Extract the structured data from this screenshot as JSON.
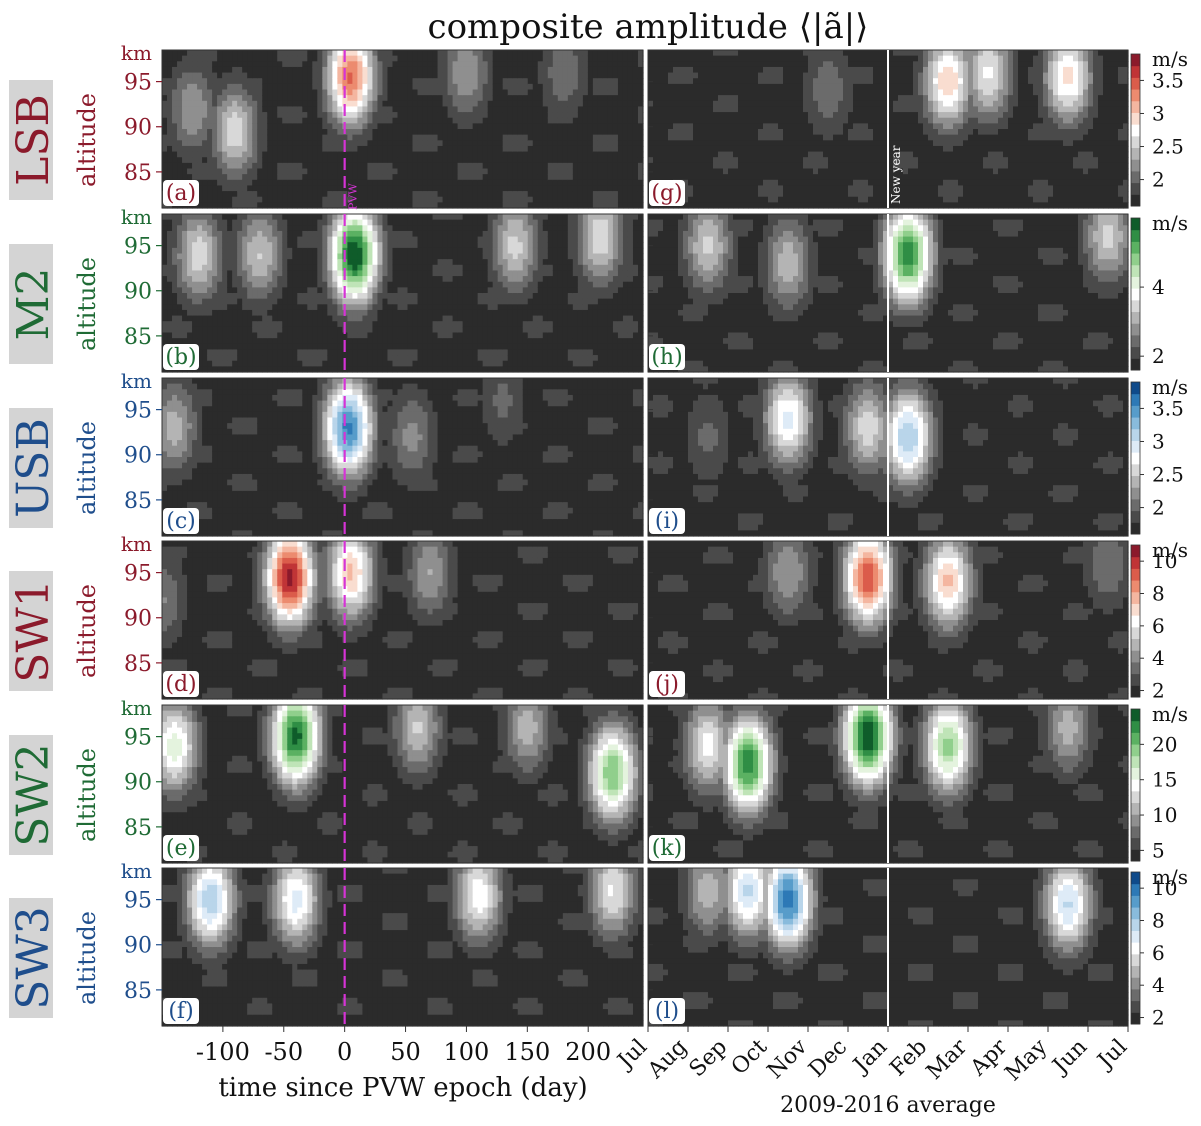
{
  "title": "composite amplitude ⟨|ã|⟩",
  "left_xlabel": "time since PVW epoch (day)",
  "right_xlabel": "2009-2016 average",
  "left_xticks": [
    -100,
    -50,
    0,
    50,
    100,
    150,
    200
  ],
  "left_xlim": [
    -150,
    245
  ],
  "right_xticks": [
    "Jul",
    "Aug",
    "Sep",
    "Oct",
    "Nov",
    "Dec",
    "Jan",
    "Feb",
    "Mar",
    "Apr",
    "May",
    "Jun",
    "Jul"
  ],
  "yticks": [
    85,
    90,
    95
  ],
  "ylim": [
    81,
    98.5
  ],
  "ylabel": "altitude",
  "yunit": "km",
  "cbar_unit": "m/s",
  "pvw_label": "PVW",
  "newyear_label": "New year",
  "colors": {
    "red": "#8b1a2b",
    "green": "#1f6b35",
    "blue": "#1f4e8c",
    "magenta": "#d633d6",
    "dark_grey": "#2b2b2b",
    "label_bg": "#d4d4d4"
  },
  "chart_data": [
    {
      "component": "LSB",
      "type": "heatmap",
      "palette": "red",
      "cbar_ticks": [
        2,
        2.5,
        3,
        3.5
      ],
      "cbar_range": [
        1.6,
        3.9
      ],
      "left_panel": "(a)",
      "right_panel": "(g)",
      "left_peaks": [
        {
          "time_day": 5,
          "alt_km": 95.5,
          "amp": 3.4
        },
        {
          "time_day": -90,
          "alt_km": 89.5,
          "amp": 2.6
        },
        {
          "time_day": -125,
          "alt_km": 92,
          "amp": 2.3
        },
        {
          "time_day": 100,
          "alt_km": 96,
          "amp": 2.3
        },
        {
          "time_day": 180,
          "alt_km": 96,
          "amp": 2.1
        }
      ],
      "right_peaks": [
        {
          "month": "Feb",
          "alt_km": 95,
          "amp": 3.0
        },
        {
          "month": "Mar",
          "alt_km": 96,
          "amp": 2.7
        },
        {
          "month": "May",
          "alt_km": 95.5,
          "amp": 2.9
        },
        {
          "month": "Nov",
          "alt_km": 94,
          "amp": 2.1
        }
      ]
    },
    {
      "component": "M2",
      "type": "heatmap",
      "palette": "green",
      "cbar_ticks": [
        2,
        4
      ],
      "cbar_range": [
        1.6,
        6
      ],
      "left_panel": "(b)",
      "right_panel": "(h)",
      "left_peaks": [
        {
          "time_day": 8,
          "alt_km": 94,
          "amp": 6.0
        },
        {
          "time_day": -120,
          "alt_km": 94,
          "amp": 3.5
        },
        {
          "time_day": -70,
          "alt_km": 94,
          "amp": 3.3
        },
        {
          "time_day": 140,
          "alt_km": 95,
          "amp": 3.4
        },
        {
          "time_day": 210,
          "alt_km": 96,
          "amp": 3.6
        }
      ],
      "right_peaks": [
        {
          "month": "Jan",
          "alt_km": 94,
          "amp": 5.6
        },
        {
          "month": "Aug",
          "alt_km": 95,
          "amp": 3.4
        },
        {
          "month": "Oct",
          "alt_km": 93,
          "amp": 3.2
        },
        {
          "month": "Jun",
          "alt_km": 96,
          "amp": 3.4
        }
      ]
    },
    {
      "component": "USB",
      "type": "heatmap",
      "palette": "blue",
      "cbar_ticks": [
        2,
        2.5,
        3,
        3.5
      ],
      "cbar_range": [
        1.6,
        3.9
      ],
      "left_panel": "(c)",
      "right_panel": "(i)",
      "left_peaks": [
        {
          "time_day": 3,
          "alt_km": 93,
          "amp": 3.6
        },
        {
          "time_day": -140,
          "alt_km": 93,
          "amp": 2.4
        },
        {
          "time_day": 55,
          "alt_km": 92,
          "amp": 2.2
        },
        {
          "time_day": 130,
          "alt_km": 96,
          "amp": 2.0
        }
      ],
      "right_peaks": [
        {
          "month": "Jan",
          "alt_km": 92,
          "amp": 3.2
        },
        {
          "month": "Oct",
          "alt_km": 94,
          "amp": 2.9
        },
        {
          "month": "Dec",
          "alt_km": 93,
          "amp": 2.6
        },
        {
          "month": "Aug",
          "alt_km": 92,
          "amp": 2.0
        }
      ]
    },
    {
      "component": "SW1",
      "type": "heatmap",
      "palette": "red",
      "cbar_ticks": [
        2,
        4,
        6,
        8,
        10
      ],
      "cbar_range": [
        1.6,
        11
      ],
      "left_panel": "(d)",
      "right_panel": "(j)",
      "left_peaks": [
        {
          "time_day": -45,
          "alt_km": 94.5,
          "amp": 10.5
        },
        {
          "time_day": 5,
          "alt_km": 95,
          "amp": 7.5
        },
        {
          "time_day": 70,
          "alt_km": 95,
          "amp": 4.5
        },
        {
          "time_day": -150,
          "alt_km": 92,
          "amp": 3.8
        }
      ],
      "right_peaks": [
        {
          "month": "Dec",
          "alt_km": 94.5,
          "amp": 9.5
        },
        {
          "month": "Feb",
          "alt_km": 94,
          "amp": 7.5
        },
        {
          "month": "Oct",
          "alt_km": 95,
          "amp": 4.5
        },
        {
          "month": "Jun",
          "alt_km": 96,
          "amp": 3.8
        }
      ]
    },
    {
      "component": "SW2",
      "type": "heatmap",
      "palette": "green",
      "cbar_ticks": [
        5,
        10,
        15,
        20
      ],
      "cbar_range": [
        3.5,
        25
      ],
      "left_panel": "(e)",
      "right_panel": "(k)",
      "left_peaks": [
        {
          "time_day": -40,
          "alt_km": 95,
          "amp": 24
        },
        {
          "time_day": -140,
          "alt_km": 94,
          "amp": 16
        },
        {
          "time_day": 220,
          "alt_km": 91,
          "amp": 20
        },
        {
          "time_day": 60,
          "alt_km": 96,
          "amp": 12
        },
        {
          "time_day": 150,
          "alt_km": 96,
          "amp": 11
        }
      ],
      "right_peaks": [
        {
          "month": "Sep",
          "alt_km": 92,
          "amp": 23
        },
        {
          "month": "Dec",
          "alt_km": 95,
          "amp": 25
        },
        {
          "month": "Feb",
          "alt_km": 94,
          "amp": 19
        },
        {
          "month": "Aug",
          "alt_km": 94,
          "amp": 14
        },
        {
          "month": "May",
          "alt_km": 96,
          "amp": 11
        }
      ]
    },
    {
      "component": "SW3",
      "type": "heatmap",
      "palette": "blue",
      "cbar_ticks": [
        2,
        4,
        6,
        8,
        10
      ],
      "cbar_range": [
        1.6,
        11
      ],
      "left_panel": "(f)",
      "right_panel": "(l)",
      "left_peaks": [
        {
          "time_day": -110,
          "alt_km": 95,
          "amp": 8.0
        },
        {
          "time_day": -40,
          "alt_km": 95,
          "amp": 7.0
        },
        {
          "time_day": 110,
          "alt_km": 95.5,
          "amp": 6.5
        },
        {
          "time_day": 220,
          "alt_km": 96,
          "amp": 6.0
        }
      ],
      "right_peaks": [
        {
          "month": "Oct",
          "alt_km": 95,
          "amp": 10
        },
        {
          "month": "Sep",
          "alt_km": 96,
          "amp": 7.5
        },
        {
          "month": "May",
          "alt_km": 94.5,
          "amp": 7.5
        },
        {
          "month": "Aug",
          "alt_km": 96,
          "amp": 5.0
        }
      ]
    }
  ]
}
